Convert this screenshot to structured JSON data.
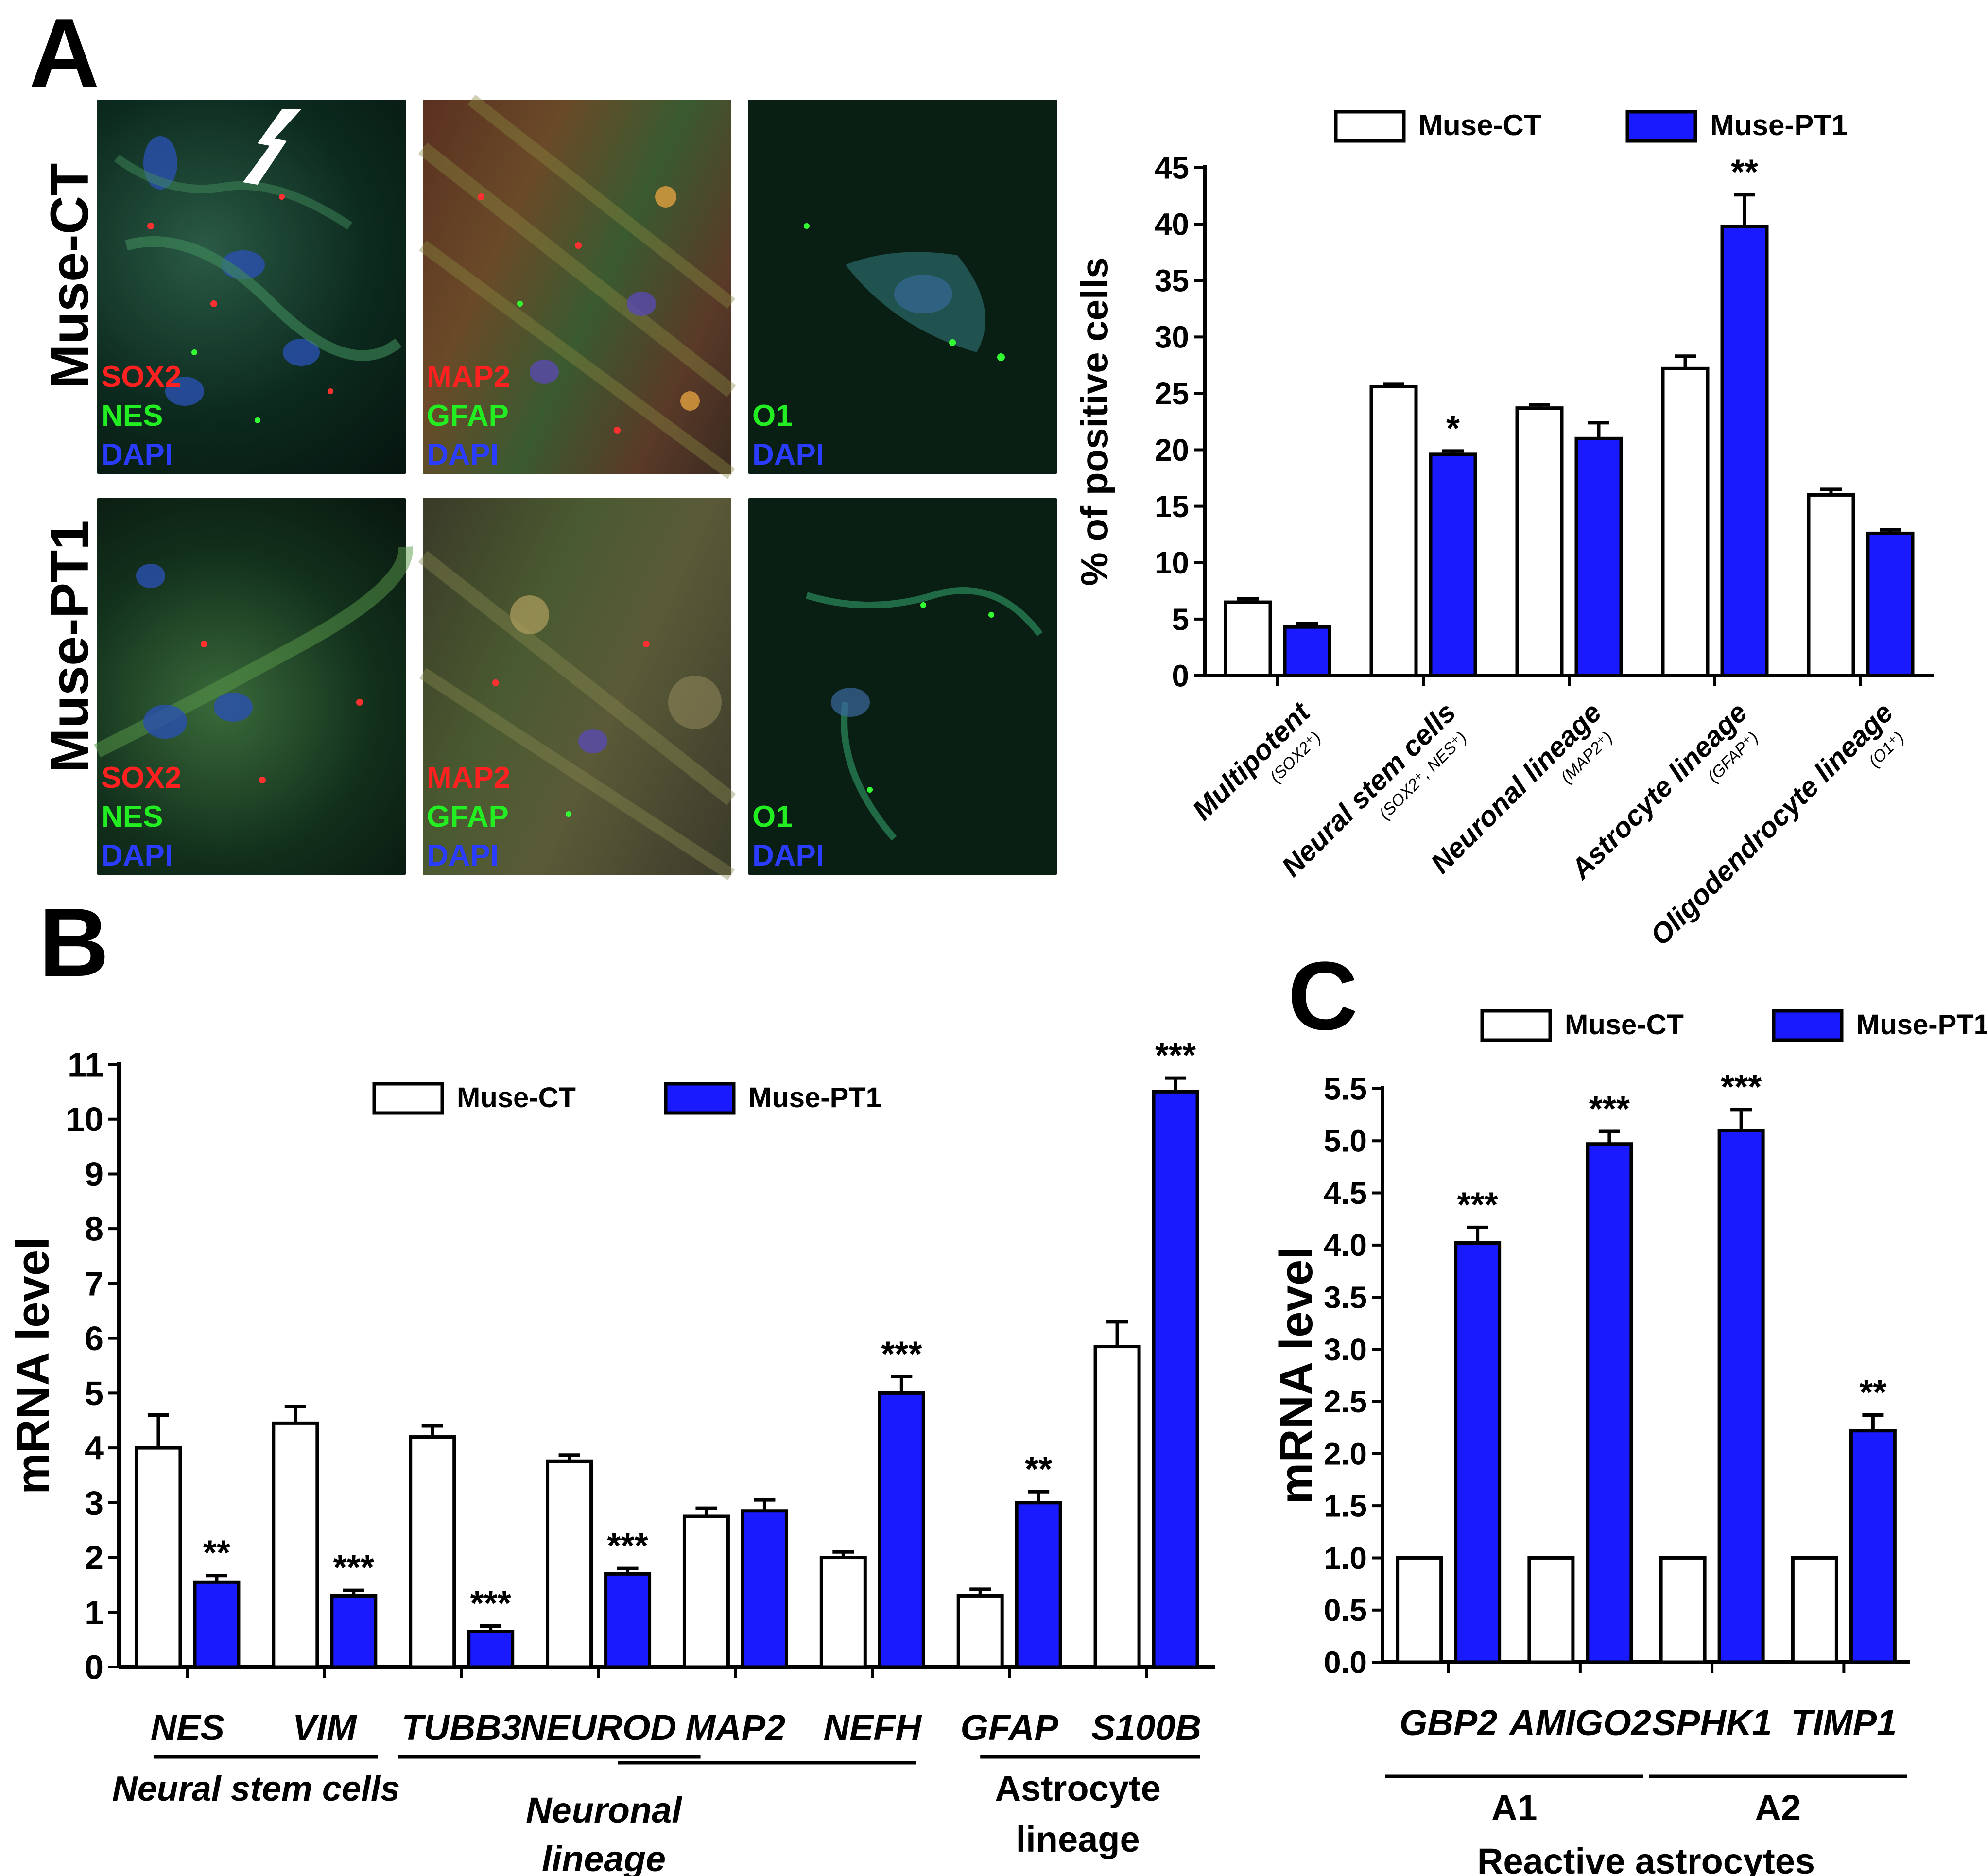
{
  "panels": {
    "a_letter": "A",
    "b_letter": "B",
    "c_letter": "C"
  },
  "micrographs": {
    "rows": [
      {
        "label": "Muse-CT",
        "panels": [
          {
            "labels": [
              "SOX2",
              "NES",
              "DAPI"
            ],
            "colors": [
              "#ff2020",
              "#22ee22",
              "#2a3cff"
            ]
          },
          {
            "labels": [
              "MAP2",
              "GFAP",
              "DAPI"
            ],
            "colors": [
              "#ff2020",
              "#22ee22",
              "#2a3cff"
            ]
          },
          {
            "labels": [
              "O1",
              "DAPI"
            ],
            "colors": [
              "#22ee22",
              "#2a3cff"
            ]
          }
        ]
      },
      {
        "label": "Muse-PT1",
        "panels": [
          {
            "labels": [
              "SOX2",
              "NES",
              "DAPI"
            ],
            "colors": [
              "#ff2020",
              "#22ee22",
              "#2a3cff"
            ]
          },
          {
            "labels": [
              "MAP2",
              "GFAP",
              "DAPI"
            ],
            "colors": [
              "#ff2020",
              "#22ee22",
              "#2a3cff"
            ]
          },
          {
            "labels": [
              "O1",
              "DAPI"
            ],
            "colors": [
              "#22ee22",
              "#2a3cff"
            ]
          }
        ]
      }
    ]
  },
  "chart_data": [
    {
      "id": "A",
      "type": "bar",
      "ylabel": "% of positive cells",
      "ylim": [
        0,
        45
      ],
      "yticks": [
        0,
        5,
        10,
        15,
        20,
        25,
        30,
        35,
        40,
        45
      ],
      "categories": [
        {
          "name": "Multipotent",
          "marker": "(SOX2⁺)"
        },
        {
          "name": "Neural stem cells",
          "marker": "(SOX2⁺, NES⁺)"
        },
        {
          "name": "Neuronal lineage",
          "marker": "(MAP2⁺)"
        },
        {
          "name": "Astrocyte lineage",
          "marker": "(GFAP⁺)"
        },
        {
          "name": "Oligodendrocyte lineage",
          "marker": "(O1⁺)"
        }
      ],
      "series": [
        {
          "name": "Muse-CT",
          "color": "#ffffff",
          "values": [
            6.5,
            25.6,
            23.7,
            27.2,
            16.0
          ],
          "errors": [
            0.3,
            0.2,
            0.3,
            1.1,
            0.5
          ]
        },
        {
          "name": "Muse-PT1",
          "color": "#1a1aff",
          "values": [
            4.3,
            19.6,
            21.0,
            39.8,
            12.6
          ],
          "errors": [
            0.3,
            0.3,
            1.4,
            2.8,
            0.3
          ]
        }
      ],
      "significance": [
        "",
        "*",
        "",
        "**",
        ""
      ],
      "legend": "top"
    },
    {
      "id": "B",
      "type": "bar",
      "ylabel": "mRNA level",
      "ylim": [
        0,
        11
      ],
      "yticks": [
        0,
        1,
        2,
        3,
        4,
        5,
        6,
        7,
        8,
        9,
        10,
        11
      ],
      "categories": [
        "NES",
        "VIM",
        "TUBB3",
        "NEUROD",
        "MAP2",
        "NEFH",
        "GFAP",
        "S100B"
      ],
      "series": [
        {
          "name": "Muse-CT",
          "color": "#ffffff",
          "values": [
            4.0,
            4.45,
            4.2,
            3.75,
            2.75,
            2.0,
            1.3,
            5.85
          ],
          "errors": [
            0.6,
            0.3,
            0.2,
            0.12,
            0.15,
            0.1,
            0.12,
            0.45
          ]
        },
        {
          "name": "Muse-PT1",
          "color": "#1a1aff",
          "values": [
            1.55,
            1.3,
            0.65,
            1.7,
            2.85,
            5.0,
            3.0,
            10.5
          ],
          "errors": [
            0.12,
            0.1,
            0.1,
            0.1,
            0.2,
            0.3,
            0.2,
            0.25
          ]
        }
      ],
      "significance": [
        "**",
        "***",
        "***",
        "***",
        "",
        "***",
        "**",
        "***"
      ],
      "groups": [
        {
          "label": "Neural stem cells",
          "from": 0,
          "to": 1
        },
        {
          "label": "Neuronal lineage",
          "from": 2,
          "to": 5
        },
        {
          "label": "Astrocyte lineage",
          "from": 6,
          "to": 7
        }
      ],
      "group_label_lines": {
        "neuronal": [
          "Neuronal",
          "lineage"
        ],
        "astrocyte": [
          "Astrocyte",
          "lineage"
        ]
      },
      "legend": "top"
    },
    {
      "id": "C",
      "type": "bar",
      "ylabel": "mRNA level",
      "ylim": [
        0,
        5.5
      ],
      "yticks": [
        "0.0",
        "0.5",
        "1.0",
        "1.5",
        "2.0",
        "2.5",
        "3.0",
        "3.5",
        "4.0",
        "4.5",
        "5.0",
        "5.5"
      ],
      "categories": [
        "GBP2",
        "AMIGO2",
        "SPHK1",
        "TIMP1"
      ],
      "series": [
        {
          "name": "Muse-CT",
          "color": "#ffffff",
          "values": [
            1.0,
            1.0,
            1.0,
            1.0
          ],
          "errors": [
            0,
            0,
            0,
            0
          ]
        },
        {
          "name": "Muse-PT1",
          "color": "#1a1aff",
          "values": [
            4.02,
            4.97,
            5.1,
            2.22
          ],
          "errors": [
            0.15,
            0.12,
            0.2,
            0.15
          ]
        }
      ],
      "significance": [
        "***",
        "***",
        "***",
        "**"
      ],
      "groups": [
        {
          "label": "A1",
          "from": 0,
          "to": 1
        },
        {
          "label": "A2",
          "from": 2,
          "to": 3
        }
      ],
      "super_label": "Reactive astrocytes",
      "legend": "top-right"
    }
  ]
}
